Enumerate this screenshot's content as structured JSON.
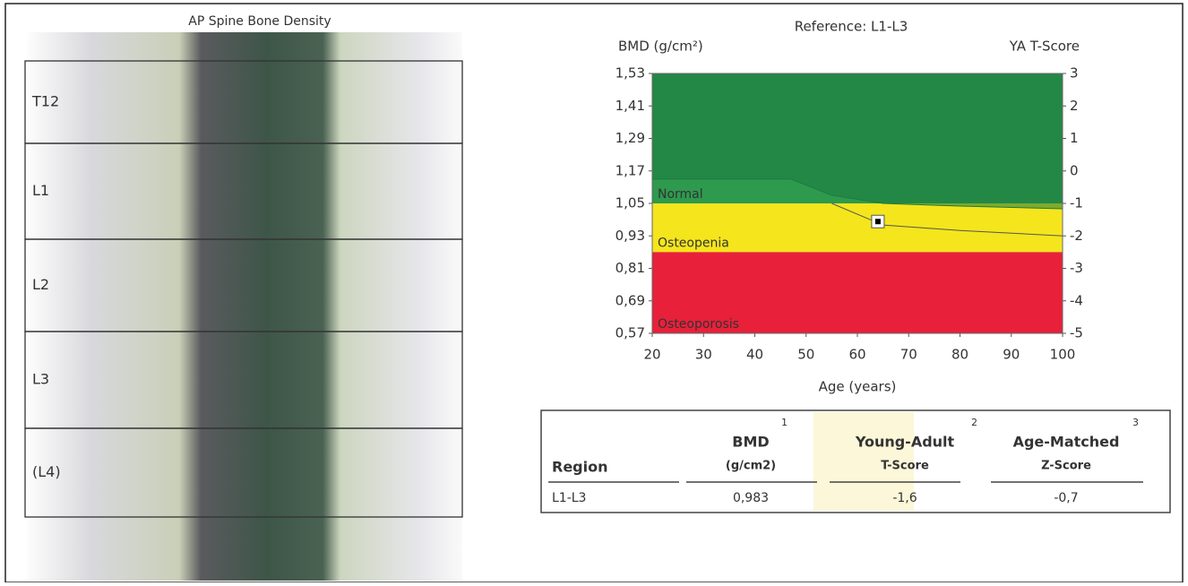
{
  "scan": {
    "title": "AP Spine Bone Density",
    "regions": [
      "T12",
      "L1",
      "L2",
      "L3",
      "(L4)"
    ]
  },
  "chart_data": {
    "type": "line",
    "title": "Reference: L1-L3",
    "y_label": "BMD (g/cm²)",
    "y2_label": "YA T-Score",
    "x_label": "Age (years)",
    "xlim": [
      20,
      100
    ],
    "xticks": [
      20,
      30,
      40,
      50,
      60,
      70,
      80,
      90,
      100
    ],
    "ylim": [
      0.57,
      1.53
    ],
    "yticks": [
      {
        "value": 1.53,
        "label": "1,53"
      },
      {
        "value": 1.41,
        "label": "1,41"
      },
      {
        "value": 1.29,
        "label": "1,29"
      },
      {
        "value": 1.17,
        "label": "1,17"
      },
      {
        "value": 1.05,
        "label": "1,05"
      },
      {
        "value": 0.93,
        "label": "0,93"
      },
      {
        "value": 0.81,
        "label": "0,81"
      },
      {
        "value": 0.69,
        "label": "0,69"
      },
      {
        "value": 0.57,
        "label": "0,57"
      }
    ],
    "y2lim": [
      -5,
      3
    ],
    "y2ticks": [
      3,
      2,
      1,
      0,
      -1,
      -2,
      -3,
      -4,
      -5
    ],
    "bands": [
      {
        "name": "Normal",
        "color": "#2e9a4e",
        "from": -1,
        "to": 3
      },
      {
        "name": "Osteopenia",
        "color": "#f5e51c",
        "from": -2.5,
        "to": -1
      },
      {
        "name": "Osteoporosis",
        "color": "#e8203a",
        "from": -5,
        "to": -2.5
      }
    ],
    "curves": [
      {
        "color": "#1c7a3e",
        "x": [
          20,
          47,
          55,
          65,
          80,
          100
        ],
        "values": [
          1.14,
          1.14,
          1.08,
          1.05,
          1.04,
          1.03
        ]
      },
      {
        "color": "#555555",
        "x": [
          55,
          65,
          80,
          100
        ],
        "values": [
          1.05,
          0.97,
          0.95,
          0.93
        ]
      }
    ],
    "series": [
      {
        "x": [
          64
        ],
        "values": [
          0.983
        ],
        "color": "#000000"
      }
    ]
  },
  "table": {
    "headers": [
      [
        "Region",
        ""
      ],
      [
        "BMD",
        "(g/cm2)",
        "1"
      ],
      [
        "Young-Adult",
        "T-Score",
        "2"
      ],
      [
        "Age-Matched",
        "Z-Score",
        "3"
      ]
    ],
    "rows": [
      [
        "L1-L3",
        "0,983",
        "-1,6",
        "-0,7"
      ]
    ]
  }
}
